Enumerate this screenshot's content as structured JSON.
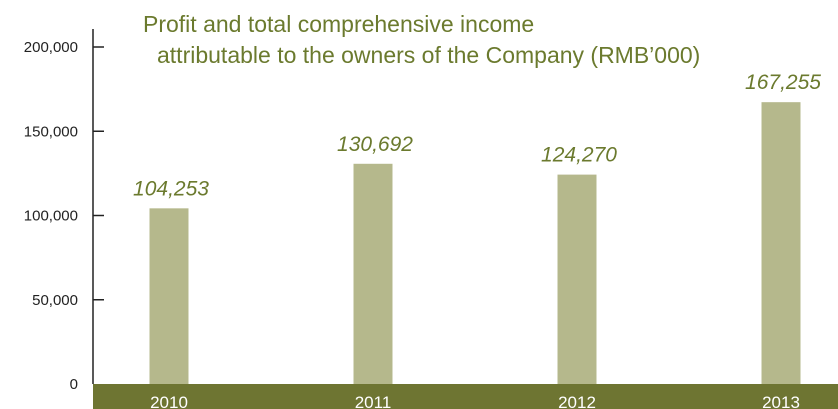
{
  "chart_data": {
    "type": "bar",
    "title_lines": [
      "Profit and total comprehensive income",
      "attributable to the owners of the Company (RMB’000)"
    ],
    "categories": [
      "2010",
      "2011",
      "2012",
      "2013"
    ],
    "values": [
      104253,
      130692,
      124270,
      167255
    ],
    "data_labels": [
      "104,253",
      "130,692",
      "124,270",
      "167,255"
    ],
    "ylim": [
      0,
      200000
    ],
    "yticks": [
      0,
      50000,
      100000,
      150000,
      200000
    ],
    "ytick_labels": [
      "0",
      "50,000",
      "100,000",
      "150,000",
      "200,000"
    ],
    "xlabel": "",
    "ylabel": "",
    "grid": false,
    "colors": {
      "bar": "#b5b88c",
      "label": "#6b7a2e",
      "baseline_band": "#6e7532",
      "axis": "#222222",
      "tick_text": "#222222",
      "category_text": "#ffffff"
    }
  }
}
